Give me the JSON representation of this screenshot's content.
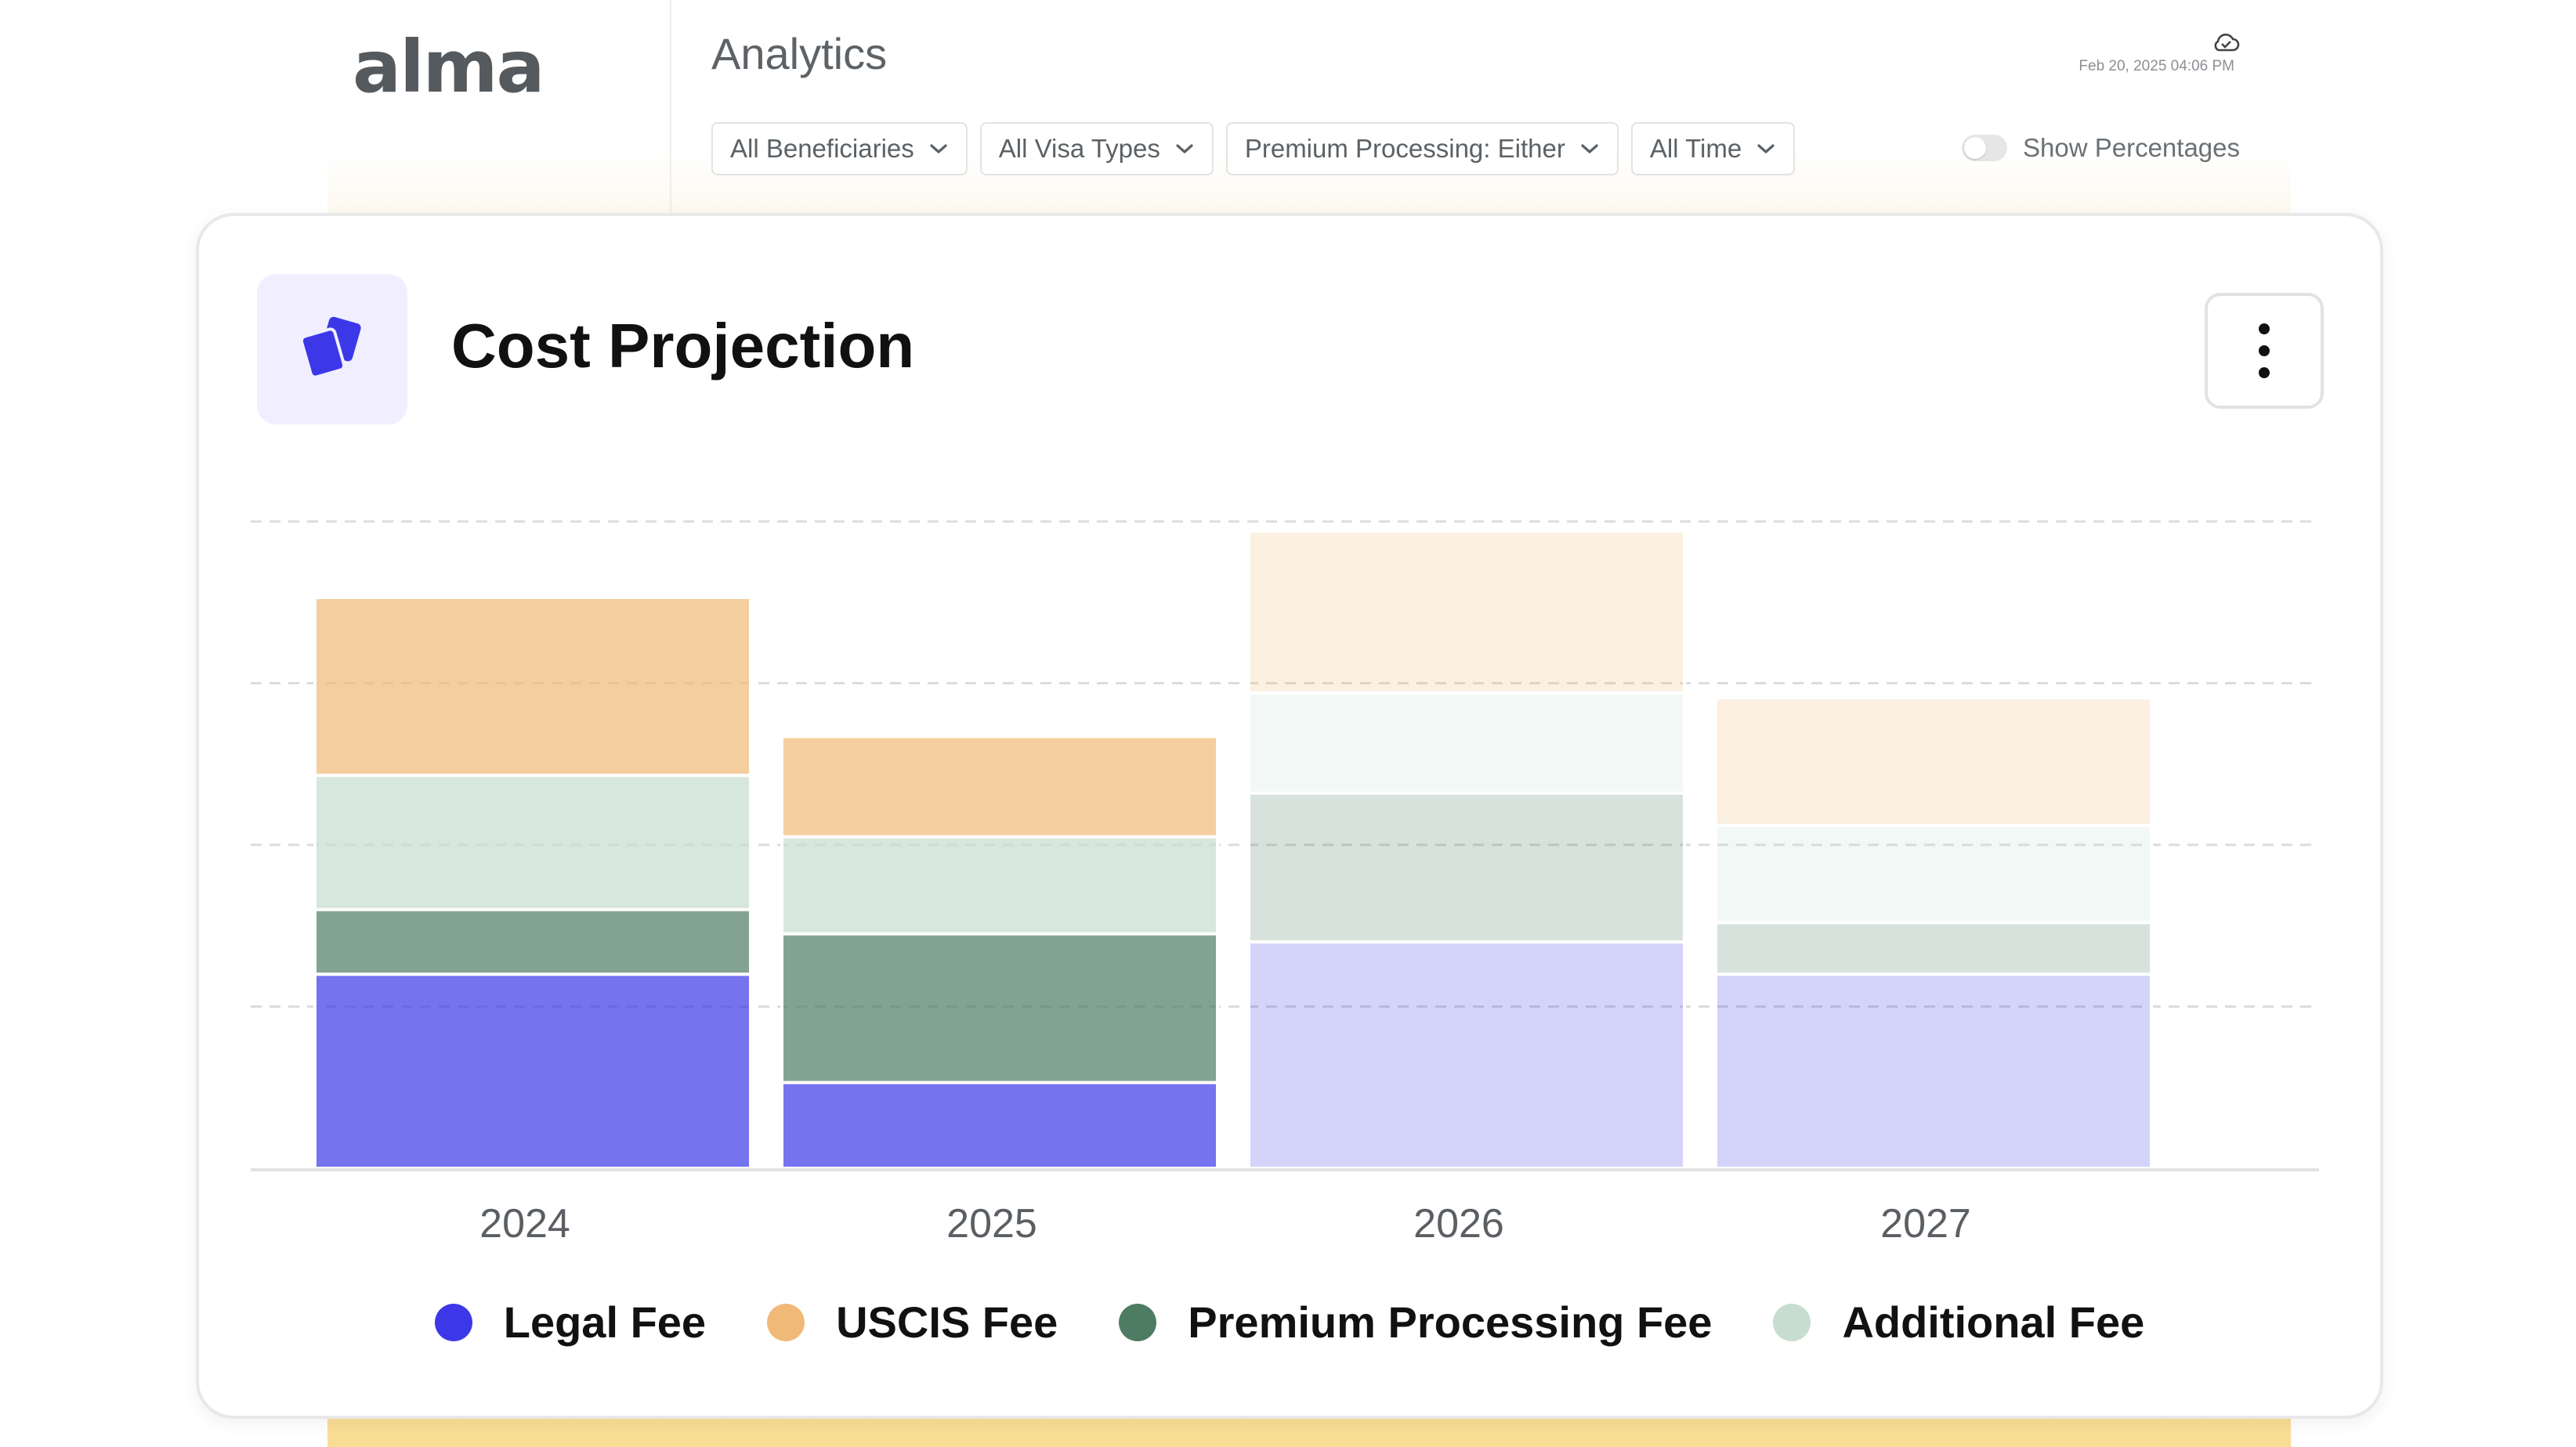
{
  "app": {
    "logo_text": "alma",
    "page_title": "Analytics",
    "last_updated": "Feb 20, 2025 04:06 PM"
  },
  "filters": [
    {
      "label": "All Beneficiaries"
    },
    {
      "label": "All Visa Types"
    },
    {
      "label": "Premium Processing: Either"
    },
    {
      "label": "All Time"
    }
  ],
  "toggle": {
    "label": "Show Percentages",
    "on": false
  },
  "card": {
    "title": "Cost Projection"
  },
  "colors": {
    "Legal Fee": "#3c38e8",
    "USCIS Fee": "#f1b978",
    "Premium Processing Fee": "#4e7c63",
    "Additional Fee": "#c6ddd0"
  },
  "chart_data": {
    "type": "bar",
    "stacked": true,
    "categories": [
      "2024",
      "2025",
      "2026",
      "2027"
    ],
    "projected_categories": [
      "2026",
      "2027"
    ],
    "series": [
      {
        "name": "Legal Fee",
        "values": [
          1.2,
          0.53,
          1.4,
          1.2
        ]
      },
      {
        "name": "Premium Processing Fee",
        "values": [
          0.4,
          0.92,
          0.92,
          0.32
        ]
      },
      {
        "name": "Additional Fee",
        "values": [
          0.83,
          0.6,
          0.62,
          0.6
        ]
      },
      {
        "name": "USCIS Fee",
        "values": [
          1.1,
          0.62,
          1.0,
          0.79
        ]
      }
    ],
    "ylim": [
      0,
      4
    ],
    "grid": true,
    "y_axis_labels": false,
    "legend_position": "bottom"
  }
}
